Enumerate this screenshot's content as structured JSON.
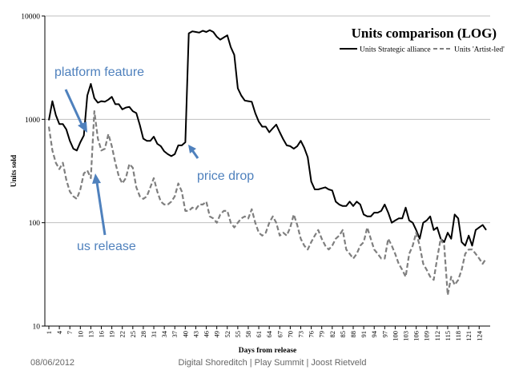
{
  "chart_data": {
    "type": "line",
    "title": "Units comparison (LOG)",
    "xlabel": "Days from release",
    "ylabel": "Units sold",
    "yscale": "log",
    "ylim": [
      10,
      10000
    ],
    "yticks": [
      10,
      100,
      1000,
      10000
    ],
    "ytick_labels": [
      "10",
      "100",
      "1000",
      "10000"
    ],
    "xlim": [
      1,
      126
    ],
    "xticks": [
      1,
      4,
      7,
      10,
      13,
      16,
      19,
      22,
      25,
      28,
      31,
      34,
      37,
      40,
      43,
      46,
      49,
      52,
      55,
      58,
      61,
      64,
      67,
      70,
      73,
      76,
      79,
      82,
      85,
      88,
      91,
      94,
      97,
      100,
      103,
      106,
      109,
      112,
      115,
      118,
      121,
      124
    ],
    "grid": "horizontal",
    "legend_position": "top-right",
    "series": [
      {
        "name": "Units Strategic alliance",
        "style": "solid",
        "color": "#000000",
        "x": [
          1,
          2,
          3,
          4,
          5,
          6,
          7,
          8,
          9,
          10,
          11,
          12,
          13,
          14,
          15,
          16,
          17,
          18,
          19,
          20,
          21,
          22,
          23,
          24,
          25,
          26,
          27,
          28,
          29,
          30,
          31,
          32,
          33,
          34,
          35,
          36,
          37,
          38,
          39,
          40,
          41,
          42,
          43,
          44,
          45,
          46,
          47,
          48,
          49,
          50,
          51,
          52,
          53,
          54,
          55,
          56,
          57,
          58,
          59,
          60,
          61,
          62,
          63,
          64,
          65,
          66,
          67,
          68,
          69,
          70,
          71,
          72,
          73,
          74,
          75,
          76,
          77,
          78,
          79,
          80,
          81,
          82,
          83,
          84,
          85,
          86,
          87,
          88,
          89,
          90,
          91,
          92,
          93,
          94,
          95,
          96,
          97,
          98,
          99,
          100,
          101,
          102,
          103,
          104,
          105,
          106,
          107,
          108,
          109,
          110,
          111,
          112,
          113,
          114,
          115,
          116,
          117,
          118,
          119,
          120,
          121,
          122,
          123,
          124,
          125,
          126
        ],
        "values": [
          980,
          1500,
          1100,
          900,
          900,
          800,
          620,
          520,
          500,
          600,
          700,
          1700,
          2200,
          1600,
          1450,
          1500,
          1480,
          1550,
          1650,
          1400,
          1400,
          1250,
          1300,
          1320,
          1200,
          1150,
          880,
          650,
          620,
          620,
          680,
          580,
          550,
          490,
          460,
          440,
          460,
          560,
          560,
          600,
          6800,
          7100,
          7000,
          6900,
          7200,
          7000,
          7300,
          7000,
          6300,
          5900,
          6200,
          6500,
          5000,
          4200,
          2000,
          1700,
          1520,
          1500,
          1480,
          1150,
          950,
          850,
          850,
          750,
          820,
          890,
          750,
          640,
          560,
          550,
          520,
          550,
          620,
          530,
          430,
          250,
          210,
          210,
          215,
          220,
          210,
          205,
          160,
          150,
          145,
          145,
          160,
          145,
          160,
          150,
          120,
          115,
          115,
          125,
          125,
          130,
          150,
          125,
          100,
          105,
          110,
          110,
          140,
          105,
          100,
          85,
          70,
          100,
          105,
          115,
          85,
          90,
          70,
          65,
          80,
          70,
          120,
          110,
          65,
          60,
          75,
          60,
          85,
          90,
          95,
          85
        ]
      },
      {
        "name": "Units 'Artist-led'",
        "style": "dashed",
        "color": "#7f7f7f",
        "x": [
          1,
          2,
          3,
          4,
          5,
          6,
          7,
          8,
          9,
          10,
          11,
          12,
          13,
          14,
          15,
          16,
          17,
          18,
          19,
          20,
          21,
          22,
          23,
          24,
          25,
          26,
          27,
          28,
          29,
          30,
          31,
          32,
          33,
          34,
          35,
          36,
          37,
          38,
          39,
          40,
          41,
          42,
          43,
          44,
          45,
          46,
          47,
          48,
          49,
          50,
          51,
          52,
          53,
          54,
          55,
          56,
          57,
          58,
          59,
          60,
          61,
          62,
          63,
          64,
          65,
          66,
          67,
          68,
          69,
          70,
          71,
          72,
          73,
          74,
          75,
          76,
          77,
          78,
          79,
          80,
          81,
          82,
          83,
          84,
          85,
          86,
          87,
          88,
          89,
          90,
          91,
          92,
          93,
          94,
          95,
          96,
          97,
          98,
          99,
          100,
          101,
          102,
          103,
          104,
          105,
          106,
          107,
          108,
          109,
          110,
          111,
          112,
          113,
          114,
          115,
          116,
          117,
          118,
          119,
          120,
          121,
          122,
          123,
          124,
          125,
          126
        ],
        "values": [
          850,
          500,
          380,
          330,
          380,
          260,
          200,
          180,
          170,
          210,
          300,
          320,
          270,
          1200,
          650,
          500,
          520,
          720,
          550,
          380,
          280,
          240,
          270,
          370,
          340,
          220,
          180,
          170,
          180,
          220,
          270,
          200,
          160,
          150,
          150,
          160,
          180,
          240,
          200,
          130,
          130,
          140,
          135,
          150,
          150,
          160,
          115,
          110,
          100,
          120,
          130,
          130,
          100,
          90,
          100,
          110,
          115,
          110,
          135,
          100,
          80,
          75,
          80,
          100,
          115,
          100,
          75,
          80,
          75,
          90,
          120,
          95,
          70,
          60,
          55,
          65,
          75,
          85,
          70,
          60,
          55,
          60,
          70,
          75,
          85,
          55,
          50,
          45,
          50,
          60,
          65,
          90,
          70,
          55,
          50,
          45,
          45,
          70,
          60,
          50,
          40,
          35,
          30,
          50,
          60,
          80,
          60,
          40,
          35,
          30,
          28,
          45,
          70,
          60,
          20,
          30,
          25,
          28,
          35,
          50,
          55,
          55,
          50,
          45,
          40,
          45
        ]
      }
    ]
  },
  "annotations": {
    "platform_feature": "platform feature",
    "price_drop": "price drop",
    "us_release": "us release"
  },
  "footer": {
    "date": "08/06/2012",
    "center": "Digital Shoreditch | Play Summit | Joost Rietveld"
  },
  "colors": {
    "annotation_blue": "#4f81bd",
    "grid": "#bfbfbf"
  }
}
